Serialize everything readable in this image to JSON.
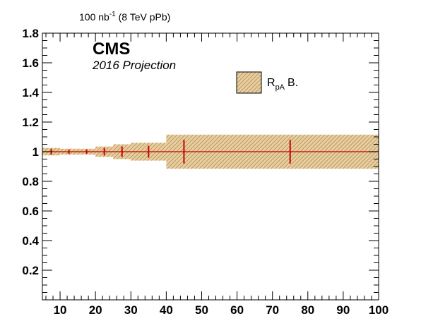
{
  "chart_data": {
    "type": "scatter",
    "title": "",
    "xlabel": "",
    "ylabel": "",
    "xlim": [
      5,
      100
    ],
    "ylim": [
      0,
      1.8
    ],
    "xticks": [
      "10",
      "20",
      "30",
      "40",
      "50",
      "60",
      "70",
      "80",
      "90",
      "100"
    ],
    "yticks": [
      "0.2",
      "0.4",
      "0.6",
      "0.8",
      "1",
      "1.2",
      "1.4",
      "1.6",
      "1.8"
    ],
    "grid": false,
    "legend_placement": "top-right",
    "reference_line": {
      "y": 1,
      "color": "#000000",
      "style": "dashed"
    },
    "series": [
      {
        "name": "B.",
        "legend_main": "R",
        "legend_sub": "pA",
        "band_color": "#c8a05a",
        "point_color": "#c80000",
        "points": [
          {
            "x_low": 5,
            "x_high": 10,
            "y": 1,
            "syst": 0.025,
            "stat": 0.02
          },
          {
            "x_low": 10,
            "x_high": 15,
            "y": 1,
            "syst": 0.02,
            "stat": 0.015
          },
          {
            "x_low": 15,
            "x_high": 20,
            "y": 1,
            "syst": 0.02,
            "stat": 0.015
          },
          {
            "x_low": 20,
            "x_high": 25,
            "y": 1,
            "syst": 0.035,
            "stat": 0.025
          },
          {
            "x_low": 25,
            "x_high": 30,
            "y": 1,
            "syst": 0.05,
            "stat": 0.035
          },
          {
            "x_low": 30,
            "x_high": 40,
            "y": 1,
            "syst": 0.06,
            "stat": 0.04
          },
          {
            "x_low": 40,
            "x_high": 50,
            "y": 1,
            "syst": 0.115,
            "stat": 0.08
          },
          {
            "x_low": 50,
            "x_high": 100,
            "y": 1,
            "syst": 0.115,
            "stat": 0.08
          }
        ]
      }
    ]
  },
  "annotations": {
    "lumi_prefix": "100 nb",
    "lumi_exp": "-1",
    "lumi_suffix": " (8 TeV pPb)",
    "cms": "CMS",
    "projection": "2016 Projection"
  }
}
